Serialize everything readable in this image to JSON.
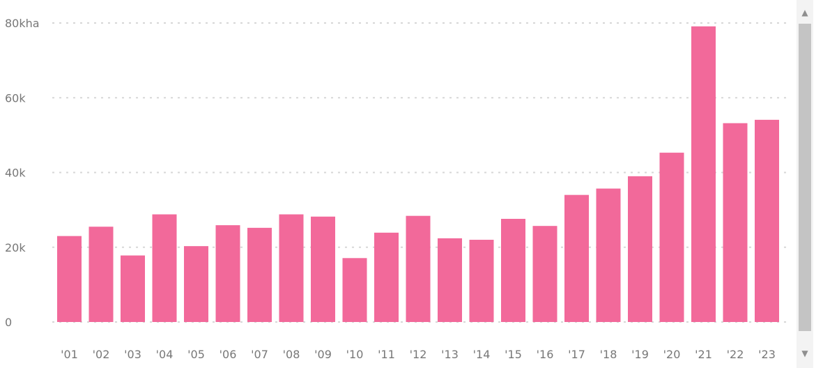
{
  "chart_data": {
    "type": "bar",
    "categories": [
      "'01",
      "'02",
      "'03",
      "'04",
      "'05",
      "'06",
      "'07",
      "'08",
      "'09",
      "'10",
      "'11",
      "'12",
      "'13",
      "'14",
      "'15",
      "'16",
      "'17",
      "'18",
      "'19",
      "'20",
      "'21",
      "'22",
      "'23"
    ],
    "values": [
      23000,
      25500,
      17800,
      28800,
      20300,
      25900,
      25200,
      28800,
      28200,
      17100,
      23900,
      28400,
      22400,
      22000,
      27600,
      25700,
      34000,
      35700,
      39000,
      45300,
      79100,
      53200,
      54100
    ],
    "title": "",
    "xlabel": "",
    "ylabel": "",
    "ylim": [
      0,
      80000
    ],
    "yticks": [
      {
        "value": 0,
        "label": "0"
      },
      {
        "value": 20000,
        "label": "20k"
      },
      {
        "value": 40000,
        "label": "40k"
      },
      {
        "value": 60000,
        "label": "60k"
      },
      {
        "value": 80000,
        "label": "80kha"
      }
    ],
    "grid": true,
    "legend": "none",
    "bar_color": "#f2699a",
    "grid_color": "#d7d7d7"
  },
  "scrollbar": {
    "up_icon": "▲",
    "down_icon": "▼"
  }
}
